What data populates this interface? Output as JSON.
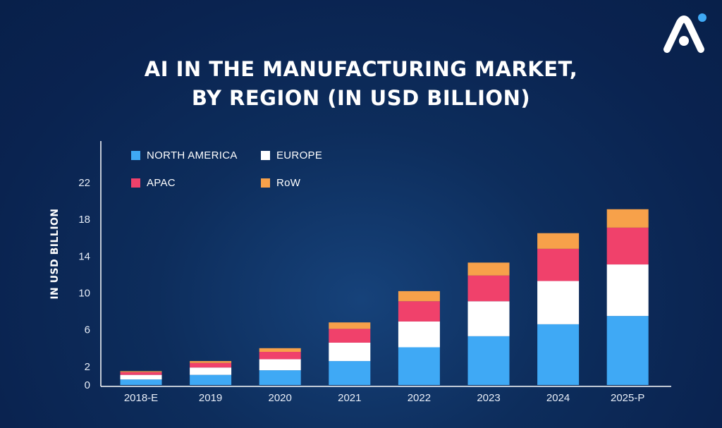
{
  "title_line1": "AI IN THE MANUFACTURING MARKET,",
  "title_line2": "BY REGION (IN USD BILLION)",
  "colors": {
    "north_america": "#3fa9f5",
    "europe": "#ffffff",
    "apac": "#f0416b",
    "row": "#f7a14a",
    "background": "#0a2350",
    "axis": "#ffffff"
  },
  "chart_data": {
    "type": "bar",
    "stacked": true,
    "ylabel": "IN USD BILLION",
    "yticks": [
      0,
      2,
      6,
      10,
      14,
      18,
      22
    ],
    "ylim": [
      0,
      24
    ],
    "categories": [
      "2018-E",
      "2019",
      "2020",
      "2021",
      "2022",
      "2023",
      "2024",
      "2025-P"
    ],
    "legend_position": "top-left",
    "series": [
      {
        "name": "NORTH AMERICA",
        "key": "north_america",
        "values": [
          0.6,
          1.1,
          1.6,
          2.6,
          4.1,
          5.3,
          6.6,
          7.5
        ]
      },
      {
        "name": "EUROPE",
        "key": "europe",
        "values": [
          0.5,
          0.8,
          1.2,
          2.0,
          2.8,
          3.8,
          4.7,
          5.6
        ]
      },
      {
        "name": "APAC",
        "key": "apac",
        "values": [
          0.3,
          0.5,
          0.8,
          1.5,
          2.2,
          2.8,
          3.5,
          4.0
        ]
      },
      {
        "name": "RoW",
        "key": "row",
        "values": [
          0.1,
          0.2,
          0.4,
          0.7,
          1.1,
          1.4,
          1.7,
          2.0
        ]
      }
    ]
  }
}
